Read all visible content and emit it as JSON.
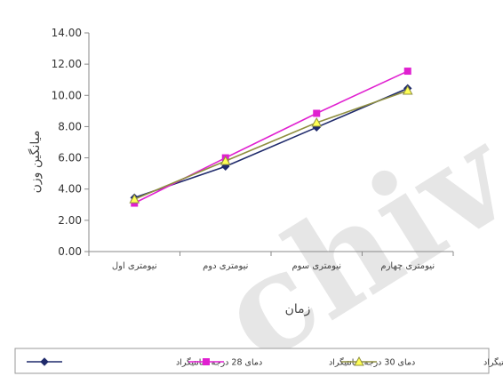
{
  "chart_data": {
    "type": "line",
    "categories": [
      "نیومتری اول",
      "نیومتری دوم",
      "نیومتری سوم",
      "نیومتری چهارم"
    ],
    "ylim": [
      0,
      14
    ],
    "yticks": [
      "0.00",
      "2.00",
      "4.00",
      "6.00",
      "8.00",
      "10.00",
      "12.00",
      "14.00"
    ],
    "xlabel": "زمان",
    "ylabel": "میانگین وزن",
    "grid": false,
    "legend_position": "bottom",
    "series": [
      {
        "name": "دمای 28 درجه سانتیگراد",
        "values": [
          3.45,
          5.45,
          7.95,
          10.45
        ],
        "color": "#1f2a6b",
        "marker": "diamond"
      },
      {
        "name": "دمای 30 درجه سانتیگراد",
        "values": [
          3.1,
          6.0,
          8.85,
          11.55
        ],
        "color": "#e020d0",
        "marker": "square"
      },
      {
        "name": "دمای 32 درجه سانتیگراد",
        "values": [
          3.35,
          5.8,
          8.25,
          10.3
        ],
        "color": "#8f8f40",
        "marker": "triangle",
        "marker_fill": "#ffff55"
      }
    ]
  },
  "watermark": {
    "text": "chiv"
  }
}
